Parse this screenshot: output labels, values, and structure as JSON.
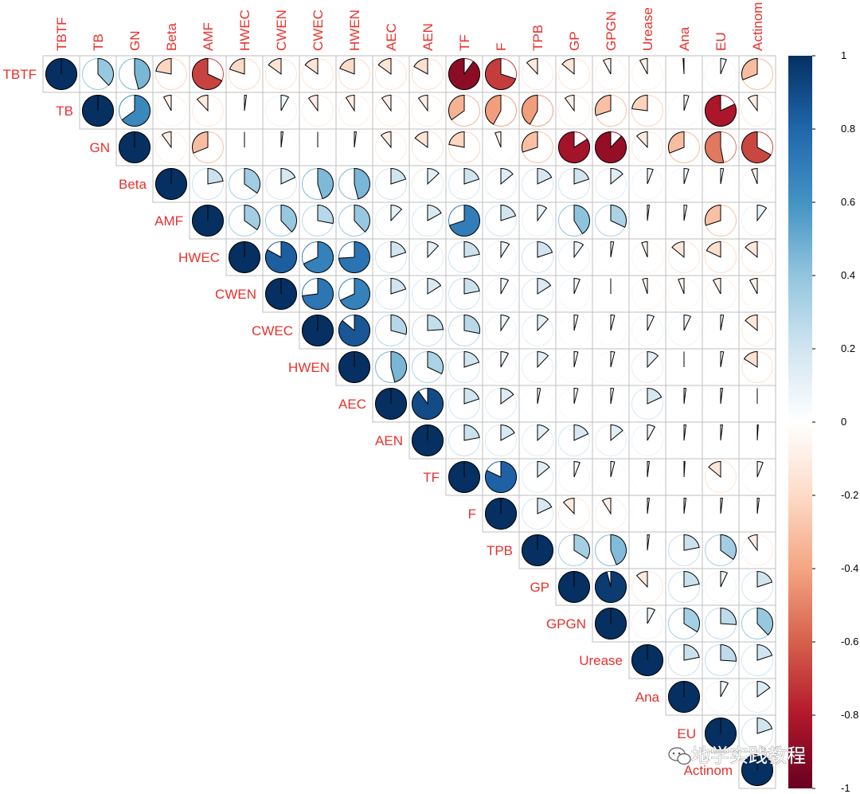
{
  "chart_data": {
    "type": "heatmap",
    "method": "pie",
    "matrix_shape": "upper-triangular",
    "variables": [
      "TBTF",
      "TB",
      "GN",
      "Beta",
      "AMF",
      "HWEC",
      "CWEN",
      "CWEC",
      "HWEN",
      "AEC",
      "AEN",
      "TF",
      "F",
      "TPB",
      "GP",
      "GPGN",
      "Urease",
      "Ana",
      "EU",
      "Actinom"
    ],
    "correlations": [
      [
        1,
        0.38,
        0.46,
        -0.22,
        -0.68,
        -0.2,
        -0.15,
        -0.15,
        -0.19,
        -0.15,
        -0.17,
        -0.9,
        -0.7,
        -0.12,
        -0.14,
        -0.08,
        -0.08,
        -0.01,
        0.06,
        -0.31
      ],
      [
        null,
        1,
        0.65,
        -0.08,
        -0.12,
        0.02,
        0.08,
        -0.1,
        -0.09,
        -0.1,
        -0.1,
        -0.35,
        -0.42,
        -0.42,
        -0.1,
        -0.3,
        -0.23,
        0.05,
        -0.82,
        -0.1
      ],
      [
        null,
        null,
        1,
        -0.1,
        -0.31,
        0,
        0.02,
        0,
        0.02,
        -0.11,
        -0.15,
        -0.22,
        -0.06,
        -0.3,
        -0.84,
        -0.88,
        -0.12,
        -0.31,
        -0.53,
        -0.67
      ],
      [
        null,
        null,
        null,
        1,
        0.22,
        0.35,
        0.18,
        0.45,
        0.46,
        0.2,
        0.13,
        0.2,
        0.14,
        0.18,
        0.2,
        0.14,
        0.06,
        0.05,
        0.03,
        -0.06
      ],
      [
        null,
        null,
        null,
        null,
        1,
        0.35,
        0.38,
        0.28,
        0.38,
        0.12,
        0.17,
        0.7,
        0.2,
        0.1,
        0.41,
        0.32,
        0.02,
        0.03,
        -0.3,
        0.1
      ],
      [
        null,
        null,
        null,
        null,
        null,
        1,
        0.83,
        0.68,
        0.74,
        0.2,
        0.12,
        0.22,
        0.09,
        0.2,
        0.1,
        0.03,
        -0.06,
        -0.14,
        -0.18,
        -0.14
      ],
      [
        null,
        null,
        null,
        null,
        null,
        null,
        1,
        0.73,
        0.68,
        0.2,
        0.16,
        0.22,
        0.08,
        0.16,
        0.06,
        0,
        -0.05,
        -0.06,
        -0.08,
        -0.08
      ],
      [
        null,
        null,
        null,
        null,
        null,
        null,
        null,
        1,
        0.86,
        0.29,
        0.24,
        0.28,
        0.09,
        0.12,
        0.04,
        0.04,
        0.07,
        0.07,
        0.03,
        -0.14
      ],
      [
        null,
        null,
        null,
        null,
        null,
        null,
        null,
        null,
        1,
        0.46,
        0.32,
        0.2,
        0.08,
        0.12,
        0.04,
        0.04,
        0.12,
        0,
        0.03,
        -0.16
      ],
      [
        null,
        null,
        null,
        null,
        null,
        null,
        null,
        null,
        null,
        1,
        0.9,
        0.2,
        0.15,
        0.03,
        0.04,
        0.03,
        0.18,
        0.02,
        0.02,
        0
      ],
      [
        null,
        null,
        null,
        null,
        null,
        null,
        null,
        null,
        null,
        null,
        1,
        0.22,
        0.17,
        0.13,
        0.18,
        0.14,
        0.08,
        0.02,
        0.02,
        0.01
      ],
      [
        null,
        null,
        null,
        null,
        null,
        null,
        null,
        null,
        null,
        null,
        null,
        1,
        0.82,
        0.14,
        0.06,
        0.04,
        0.02,
        0.01,
        -0.14,
        0.06
      ],
      [
        null,
        null,
        null,
        null,
        null,
        null,
        null,
        null,
        null,
        null,
        null,
        null,
        1,
        0.18,
        -0.12,
        -0.09,
        0.02,
        0.02,
        0.02,
        0.02
      ],
      [
        null,
        null,
        null,
        null,
        null,
        null,
        null,
        null,
        null,
        null,
        null,
        null,
        null,
        1,
        0.34,
        0.44,
        0.02,
        0.22,
        0.35,
        -0.1
      ],
      [
        null,
        null,
        null,
        null,
        null,
        null,
        null,
        null,
        null,
        null,
        null,
        null,
        null,
        null,
        1,
        0.96,
        -0.12,
        0.22,
        0.07,
        0.2
      ],
      [
        null,
        null,
        null,
        null,
        null,
        null,
        null,
        null,
        null,
        null,
        null,
        null,
        null,
        null,
        null,
        1,
        0.08,
        0.34,
        0.26,
        0.38
      ],
      [
        null,
        null,
        null,
        null,
        null,
        null,
        null,
        null,
        null,
        null,
        null,
        null,
        null,
        null,
        null,
        null,
        1,
        0.22,
        0.26,
        0.2
      ],
      [
        null,
        null,
        null,
        null,
        null,
        null,
        null,
        null,
        null,
        null,
        null,
        null,
        null,
        null,
        null,
        null,
        null,
        1,
        0.08,
        0.15
      ],
      [
        null,
        null,
        null,
        null,
        null,
        null,
        null,
        null,
        null,
        null,
        null,
        null,
        null,
        null,
        null,
        null,
        null,
        null,
        1,
        0.2
      ],
      [
        null,
        null,
        null,
        null,
        null,
        null,
        null,
        null,
        null,
        null,
        null,
        null,
        null,
        null,
        null,
        null,
        null,
        null,
        null,
        1
      ]
    ],
    "colorbar": {
      "ticks": [
        1,
        0.8,
        0.6,
        0.4,
        0.2,
        0,
        -0.2,
        -0.4,
        -0.6,
        -0.8,
        -1
      ],
      "tick_labels": [
        "1",
        "0.8",
        "0.6",
        "0.4",
        "0.2",
        "0",
        "-0.2",
        "-0.4",
        "-0.6",
        "-0.8",
        "-1"
      ],
      "range": [
        -1,
        1
      ],
      "palette": [
        "#67001f",
        "#b2182b",
        "#d6604d",
        "#f4a582",
        "#fddbc7",
        "#ffffff",
        "#d1e5f0",
        "#92c5de",
        "#4393c3",
        "#2166ac",
        "#053061"
      ],
      "placement": "right"
    },
    "grid": true
  },
  "watermark": {
    "text": "地学实践教程",
    "icon": "wechat-icon"
  },
  "colors": {
    "label": "#e8312c",
    "grid": "#bfbfbf",
    "outline": "#000000"
  }
}
